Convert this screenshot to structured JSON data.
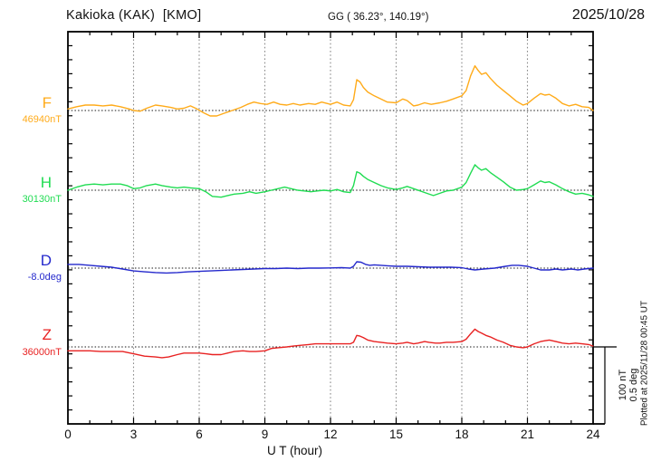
{
  "header": {
    "station": "Kakioka (KAK)  [KMO]",
    "coords": "GG ( 36.23°, 140.19°)",
    "date": "2025/10/28"
  },
  "axis": {
    "xlabel": "U T (hour)",
    "ticks": [
      0,
      3,
      6,
      9,
      12,
      15,
      18,
      21,
      24
    ],
    "xmin": 0,
    "xmax": 24,
    "minor_tick_every_hours": 1,
    "grid": "dotted vertical at every 3 hours, dotted horizontal baseline per trace"
  },
  "scale_bar": {
    "label_line1": "100 nT",
    "label_line2": "0.5 deg",
    "nT_per_bar": 100,
    "deg_per_bar": 0.5
  },
  "plotted_at": "Plotted at 2025/11/28 00:45 UT",
  "chart_data": {
    "type": "line",
    "title": "Kakioka (KAK) [KMO] magnetogram 2025/10/28",
    "xlabel": "U T (hour)",
    "x_range": [
      0,
      24
    ],
    "value_meaning": "offset from series baseline; unit nT for F/H/Z, deg for D; vertical scale 100 nT = 0.5 deg",
    "series": [
      {
        "name": "F",
        "baseline_label": "46940nT",
        "baseline": 46940,
        "unit": "nT",
        "color": "#FFAB1A",
        "points": [
          [
            0,
            2
          ],
          [
            0.4,
            5
          ],
          [
            0.8,
            7
          ],
          [
            1.2,
            7
          ],
          [
            1.6,
            6
          ],
          [
            2,
            7
          ],
          [
            2.4,
            5
          ],
          [
            2.8,
            2
          ],
          [
            3,
            0
          ],
          [
            3.3,
            -1
          ],
          [
            3.6,
            3
          ],
          [
            4,
            7
          ],
          [
            4.3,
            6
          ],
          [
            4.7,
            4
          ],
          [
            5,
            2
          ],
          [
            5.3,
            3
          ],
          [
            5.6,
            6
          ],
          [
            5.9,
            2
          ],
          [
            6.2,
            -3
          ],
          [
            6.5,
            -7
          ],
          [
            6.8,
            -7
          ],
          [
            7.1,
            -4
          ],
          [
            7.5,
            0
          ],
          [
            7.9,
            4
          ],
          [
            8.2,
            8
          ],
          [
            8.5,
            11
          ],
          [
            8.8,
            9
          ],
          [
            9.1,
            8
          ],
          [
            9.4,
            11
          ],
          [
            9.7,
            8
          ],
          [
            10,
            7
          ],
          [
            10.3,
            9
          ],
          [
            10.6,
            7
          ],
          [
            11,
            9
          ],
          [
            11.3,
            8
          ],
          [
            11.6,
            11
          ],
          [
            12,
            8
          ],
          [
            12.3,
            11
          ],
          [
            12.6,
            7
          ],
          [
            12.9,
            6
          ],
          [
            13.05,
            14
          ],
          [
            13.2,
            40
          ],
          [
            13.35,
            37
          ],
          [
            13.5,
            30
          ],
          [
            13.7,
            24
          ],
          [
            14,
            19
          ],
          [
            14.3,
            15
          ],
          [
            14.6,
            11
          ],
          [
            15,
            10
          ],
          [
            15.3,
            15
          ],
          [
            15.5,
            13
          ],
          [
            15.8,
            6
          ],
          [
            16,
            7
          ],
          [
            16.3,
            10
          ],
          [
            16.6,
            8
          ],
          [
            17,
            10
          ],
          [
            17.3,
            12
          ],
          [
            17.6,
            15
          ],
          [
            18,
            19
          ],
          [
            18.2,
            26
          ],
          [
            18.4,
            45
          ],
          [
            18.6,
            58
          ],
          [
            18.75,
            52
          ],
          [
            18.9,
            47
          ],
          [
            19.1,
            49
          ],
          [
            19.3,
            42
          ],
          [
            19.6,
            33
          ],
          [
            19.9,
            26
          ],
          [
            20.2,
            19
          ],
          [
            20.5,
            12
          ],
          [
            20.8,
            7
          ],
          [
            21,
            9
          ],
          [
            21.3,
            16
          ],
          [
            21.6,
            22
          ],
          [
            21.8,
            20
          ],
          [
            22,
            21
          ],
          [
            22.3,
            16
          ],
          [
            22.6,
            9
          ],
          [
            22.9,
            6
          ],
          [
            23.2,
            8
          ],
          [
            23.5,
            5
          ],
          [
            23.8,
            4
          ],
          [
            24,
            0
          ]
        ]
      },
      {
        "name": "H",
        "baseline_label": "30130nT",
        "baseline": 30130,
        "unit": "nT",
        "color": "#20DC52",
        "points": [
          [
            0,
            0
          ],
          [
            0.4,
            4
          ],
          [
            0.8,
            7
          ],
          [
            1.2,
            8
          ],
          [
            1.6,
            7
          ],
          [
            2,
            8
          ],
          [
            2.4,
            8
          ],
          [
            2.7,
            6
          ],
          [
            3,
            2
          ],
          [
            3.3,
            3
          ],
          [
            3.6,
            6
          ],
          [
            4,
            8
          ],
          [
            4.3,
            6
          ],
          [
            4.7,
            4
          ],
          [
            5,
            3
          ],
          [
            5.3,
            4
          ],
          [
            5.6,
            3
          ],
          [
            6,
            2
          ],
          [
            6.3,
            -2
          ],
          [
            6.6,
            -8
          ],
          [
            7,
            -9
          ],
          [
            7.3,
            -7
          ],
          [
            7.6,
            -5
          ],
          [
            8,
            -4
          ],
          [
            8.3,
            -2
          ],
          [
            8.6,
            -4
          ],
          [
            9,
            -2
          ],
          [
            9.3,
            0
          ],
          [
            9.6,
            2
          ],
          [
            9.9,
            4
          ],
          [
            10.2,
            2
          ],
          [
            10.5,
            0
          ],
          [
            10.8,
            -1
          ],
          [
            11.1,
            -2
          ],
          [
            11.4,
            -1
          ],
          [
            11.7,
            0
          ],
          [
            12,
            -1
          ],
          [
            12.3,
            1
          ],
          [
            12.6,
            -2
          ],
          [
            12.9,
            -3
          ],
          [
            13.05,
            6
          ],
          [
            13.2,
            24
          ],
          [
            13.35,
            22
          ],
          [
            13.5,
            18
          ],
          [
            13.7,
            14
          ],
          [
            14,
            10
          ],
          [
            14.3,
            6
          ],
          [
            14.6,
            3
          ],
          [
            15,
            1
          ],
          [
            15.3,
            3
          ],
          [
            15.5,
            5
          ],
          [
            15.8,
            2
          ],
          [
            16.1,
            -1
          ],
          [
            16.4,
            -4
          ],
          [
            16.7,
            -7
          ],
          [
            17,
            -4
          ],
          [
            17.3,
            -1
          ],
          [
            17.6,
            0
          ],
          [
            18,
            4
          ],
          [
            18.2,
            10
          ],
          [
            18.4,
            22
          ],
          [
            18.6,
            33
          ],
          [
            18.75,
            29
          ],
          [
            18.9,
            26
          ],
          [
            19.1,
            28
          ],
          [
            19.3,
            23
          ],
          [
            19.6,
            17
          ],
          [
            19.9,
            11
          ],
          [
            20.2,
            4
          ],
          [
            20.5,
            0
          ],
          [
            20.8,
            1
          ],
          [
            21,
            2
          ],
          [
            21.3,
            7
          ],
          [
            21.6,
            12
          ],
          [
            21.8,
            10
          ],
          [
            22,
            11
          ],
          [
            22.3,
            7
          ],
          [
            22.6,
            2
          ],
          [
            22.9,
            -2
          ],
          [
            23.2,
            -5
          ],
          [
            23.5,
            -4
          ],
          [
            23.8,
            -6
          ],
          [
            24,
            -8
          ]
        ]
      },
      {
        "name": "D",
        "baseline_label": "-8.0deg",
        "baseline": -8.0,
        "unit": "deg",
        "color": "#2428CC",
        "points": [
          [
            0,
            0.024
          ],
          [
            0.5,
            0.024
          ],
          [
            1,
            0.018
          ],
          [
            1.5,
            0.012
          ],
          [
            2,
            0.006
          ],
          [
            2.5,
            -0.006
          ],
          [
            3,
            -0.018
          ],
          [
            3.5,
            -0.024
          ],
          [
            4,
            -0.029
          ],
          [
            4.5,
            -0.032
          ],
          [
            5,
            -0.029
          ],
          [
            5.5,
            -0.024
          ],
          [
            6,
            -0.021
          ],
          [
            6.5,
            -0.018
          ],
          [
            7,
            -0.015
          ],
          [
            7.5,
            -0.012
          ],
          [
            8,
            -0.009
          ],
          [
            8.5,
            -0.006
          ],
          [
            9,
            -0.003
          ],
          [
            9.5,
            -0.003
          ],
          [
            10,
            0
          ],
          [
            10.5,
            -0.003
          ],
          [
            11,
            0
          ],
          [
            11.5,
            0
          ],
          [
            12,
            0.001
          ],
          [
            12.5,
            0.003
          ],
          [
            12.9,
            0
          ],
          [
            13.05,
            0.012
          ],
          [
            13.2,
            0.041
          ],
          [
            13.4,
            0.038
          ],
          [
            13.6,
            0.024
          ],
          [
            13.8,
            0.018
          ],
          [
            14,
            0.021
          ],
          [
            14.3,
            0.018
          ],
          [
            14.6,
            0.015
          ],
          [
            15,
            0.012
          ],
          [
            15.5,
            0.012
          ],
          [
            16,
            0.009
          ],
          [
            16.5,
            0.006
          ],
          [
            17,
            0.006
          ],
          [
            17.5,
            0.006
          ],
          [
            18,
            0.003
          ],
          [
            18.3,
            -0.006
          ],
          [
            18.6,
            -0.012
          ],
          [
            19,
            -0.006
          ],
          [
            19.5,
            0
          ],
          [
            20,
            0.012
          ],
          [
            20.3,
            0.018
          ],
          [
            20.6,
            0.018
          ],
          [
            21,
            0.012
          ],
          [
            21.3,
            0
          ],
          [
            21.6,
            -0.012
          ],
          [
            22,
            -0.012
          ],
          [
            22.3,
            -0.006
          ],
          [
            22.6,
            -0.012
          ],
          [
            23,
            -0.006
          ],
          [
            23.3,
            -0.012
          ],
          [
            23.6,
            -0.006
          ],
          [
            24,
            0
          ]
        ]
      },
      {
        "name": "Z",
        "baseline_label": "36000nT",
        "baseline": 36000,
        "unit": "nT",
        "color": "#E82222",
        "points": [
          [
            0,
            -5
          ],
          [
            0.5,
            -5
          ],
          [
            1,
            -5
          ],
          [
            1.5,
            -6
          ],
          [
            2,
            -6
          ],
          [
            2.5,
            -6
          ],
          [
            3,
            -9
          ],
          [
            3.5,
            -12
          ],
          [
            4,
            -13
          ],
          [
            4.3,
            -14
          ],
          [
            4.6,
            -13
          ],
          [
            5,
            -10
          ],
          [
            5.3,
            -8
          ],
          [
            5.6,
            -8
          ],
          [
            6,
            -8
          ],
          [
            6.3,
            -9
          ],
          [
            6.6,
            -10
          ],
          [
            7,
            -10
          ],
          [
            7.3,
            -8
          ],
          [
            7.6,
            -6
          ],
          [
            8,
            -5
          ],
          [
            8.3,
            -6
          ],
          [
            8.6,
            -6
          ],
          [
            9,
            -5
          ],
          [
            9.3,
            -2
          ],
          [
            9.6,
            -1
          ],
          [
            10,
            0
          ],
          [
            10.3,
            1
          ],
          [
            10.6,
            2
          ],
          [
            11,
            3
          ],
          [
            11.3,
            4
          ],
          [
            11.6,
            4
          ],
          [
            12,
            4
          ],
          [
            12.3,
            4
          ],
          [
            12.6,
            4
          ],
          [
            12.9,
            4
          ],
          [
            13.05,
            6
          ],
          [
            13.2,
            15
          ],
          [
            13.35,
            14
          ],
          [
            13.5,
            12
          ],
          [
            13.7,
            9
          ],
          [
            14,
            7
          ],
          [
            14.3,
            6
          ],
          [
            14.6,
            5
          ],
          [
            15,
            4
          ],
          [
            15.3,
            5
          ],
          [
            15.5,
            6
          ],
          [
            15.8,
            4
          ],
          [
            16,
            5
          ],
          [
            16.3,
            7
          ],
          [
            16.5,
            6
          ],
          [
            16.8,
            5
          ],
          [
            17,
            5
          ],
          [
            17.3,
            6
          ],
          [
            17.6,
            6
          ],
          [
            18,
            7
          ],
          [
            18.2,
            10
          ],
          [
            18.4,
            17
          ],
          [
            18.6,
            23
          ],
          [
            18.75,
            20
          ],
          [
            18.9,
            18
          ],
          [
            19.1,
            15
          ],
          [
            19.3,
            13
          ],
          [
            19.6,
            9
          ],
          [
            19.9,
            6
          ],
          [
            20.2,
            2
          ],
          [
            20.5,
            0
          ],
          [
            20.8,
            -1
          ],
          [
            21,
            0
          ],
          [
            21.3,
            4
          ],
          [
            21.6,
            7
          ],
          [
            21.8,
            8
          ],
          [
            22,
            9
          ],
          [
            22.3,
            7
          ],
          [
            22.6,
            5
          ],
          [
            22.9,
            4
          ],
          [
            23.2,
            5
          ],
          [
            23.5,
            4
          ],
          [
            23.8,
            3
          ],
          [
            24,
            1
          ]
        ]
      }
    ]
  }
}
